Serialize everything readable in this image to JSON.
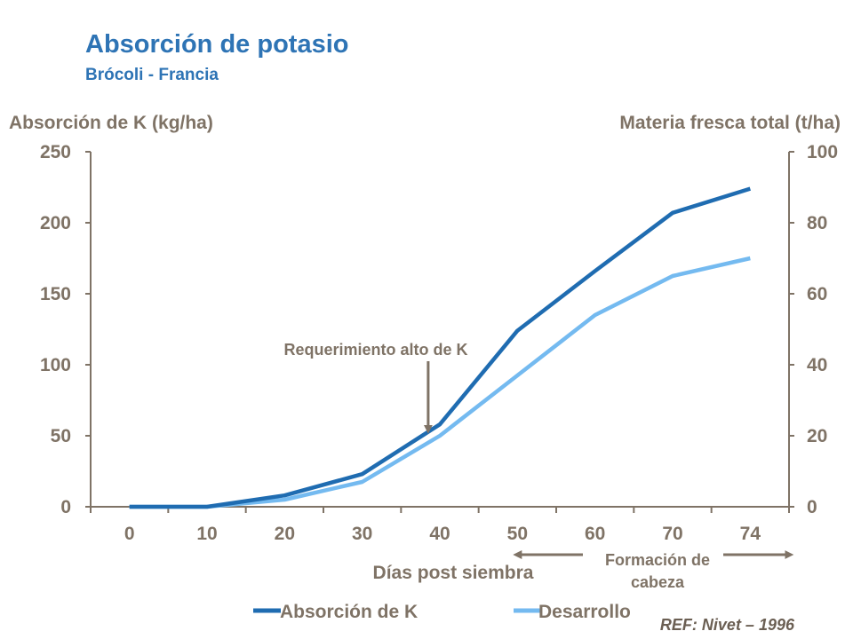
{
  "title": "Absorción de potasio",
  "subtitle": "Brócoli - Francia",
  "reference": "REF: Nivet – 1996",
  "colors": {
    "absorcion": "#1f6cb1",
    "desarrollo": "#74baf0",
    "axis": "#7f7366",
    "title": "#2e74b5"
  },
  "chart_data": {
    "type": "line",
    "title": "Absorción de potasio",
    "xlabel": "Días post siembra",
    "ylabel": "Absorción de K (kg/ha)",
    "y2label": "Materia fresca total (t/ha)",
    "categories": [
      "0",
      "10",
      "20",
      "30",
      "40",
      "50",
      "60",
      "70",
      "74"
    ],
    "ylim": [
      0,
      250
    ],
    "y2lim": [
      0,
      100
    ],
    "yticks": [
      "0",
      "50",
      "100",
      "150",
      "200",
      "250"
    ],
    "y2ticks": [
      "0",
      "20",
      "40",
      "60",
      "80",
      "100"
    ],
    "grid": false,
    "legend_position": "bottom",
    "series": [
      {
        "name": "Absorción de K",
        "axis": "left",
        "values": [
          0,
          0,
          8,
          23,
          58,
          124,
          166,
          207,
          224
        ]
      },
      {
        "name": "Desarrollo",
        "axis": "right",
        "values": [
          0,
          0,
          2,
          7,
          20,
          37,
          54,
          65,
          70
        ]
      }
    ],
    "annotations": {
      "arrow_label": "Requerimiento alto de K",
      "arrow_x": 38.5,
      "arrow_y": 52,
      "head_formation": "Formación de cabeza",
      "head_formation_from": "50",
      "head_formation_to": "74"
    }
  }
}
